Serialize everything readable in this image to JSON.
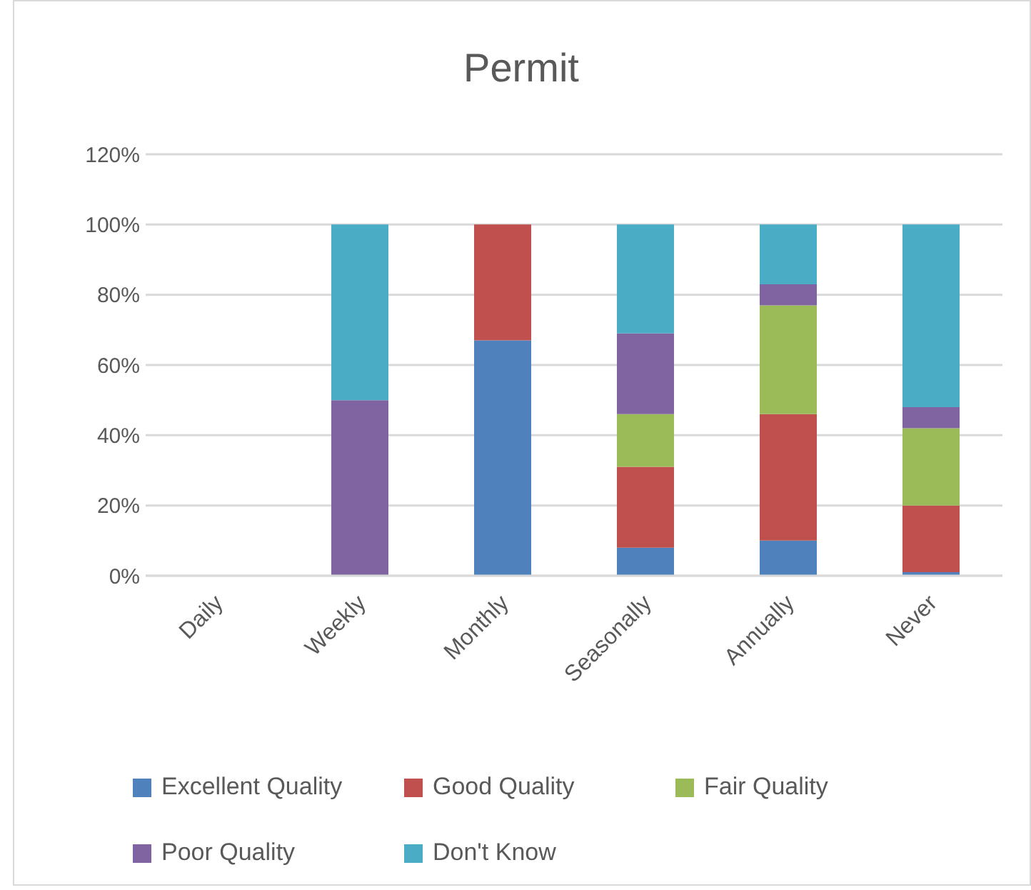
{
  "chart_data": {
    "type": "bar",
    "title": "Permit",
    "stacked": true,
    "categories": [
      "Daily",
      "Weekly",
      "Monthly",
      "Seasonally",
      "Annually",
      "Never"
    ],
    "series": [
      {
        "name": "Excellent Quality",
        "color": "#4f81bd",
        "values": [
          null,
          null,
          67,
          8,
          10,
          1
        ]
      },
      {
        "name": "Good Quality",
        "color": "#c0504d",
        "values": [
          null,
          null,
          33,
          23,
          36,
          19
        ]
      },
      {
        "name": "Fair Quality",
        "color": "#9bbb59",
        "values": [
          null,
          null,
          null,
          15,
          31,
          22
        ]
      },
      {
        "name": "Poor Quality",
        "color": "#8064a2",
        "values": [
          null,
          50,
          null,
          23,
          6,
          6
        ]
      },
      {
        "name": "Don't Know",
        "color": "#4bacc6",
        "values": [
          null,
          50,
          null,
          31,
          17,
          52
        ]
      }
    ],
    "ylim": [
      0,
      120
    ],
    "yticks": [
      {
        "value": 0,
        "label": "0%"
      },
      {
        "value": 20,
        "label": "20%"
      },
      {
        "value": 40,
        "label": "40%"
      },
      {
        "value": 60,
        "label": "60%"
      },
      {
        "value": 80,
        "label": "80%"
      },
      {
        "value": 100,
        "label": "100%"
      },
      {
        "value": 120,
        "label": "120%"
      }
    ],
    "grid": "y",
    "legend": "bottom"
  }
}
